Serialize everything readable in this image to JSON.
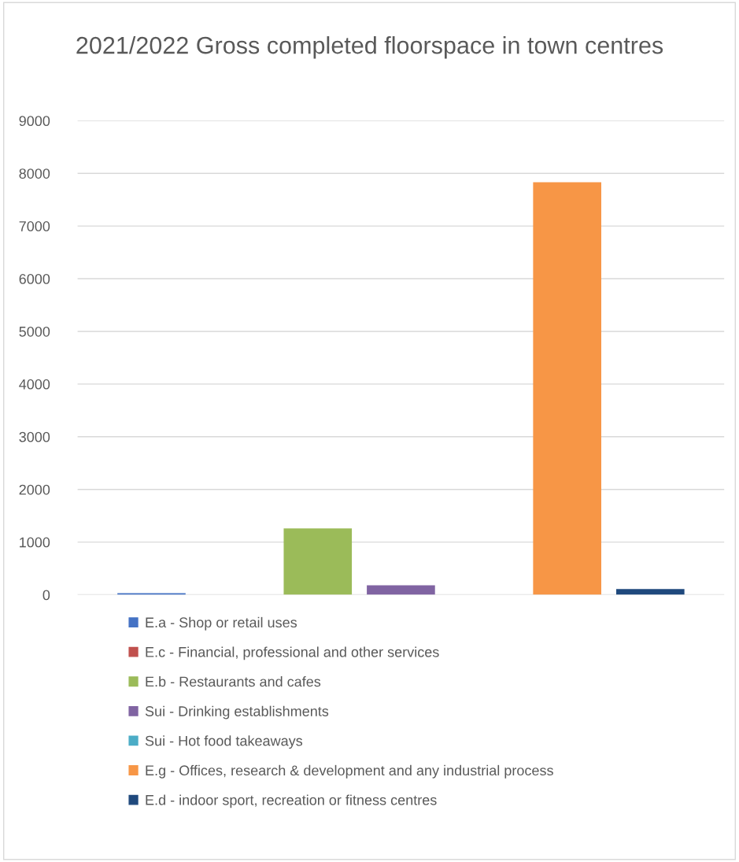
{
  "chart_data": {
    "type": "bar",
    "title": "2021/2022 Gross completed floorspace in town centres",
    "categories": [
      null
    ],
    "series": [
      {
        "name": "E.a - Shop or retail uses",
        "color": "#4472c4",
        "values": [
          30
        ]
      },
      {
        "name": "E.c - Financial, professional and other services",
        "color": "#c0504d",
        "values": [
          0
        ]
      },
      {
        "name": "E.b - Restaurants and cafes",
        "color": "#9bbb59",
        "values": [
          1260
        ]
      },
      {
        "name": "Sui - Drinking establishments",
        "color": "#8064a2",
        "values": [
          180
        ]
      },
      {
        "name": "Sui - Hot food takeaways",
        "color": "#4bacc6",
        "values": [
          0
        ]
      },
      {
        "name": "E.g - Offices, research & development and any industrial process",
        "color": "#f79646",
        "values": [
          7830
        ]
      },
      {
        "name": "E.d - indoor sport, recreation or fitness centres",
        "color": "#1f497d",
        "values": [
          110
        ]
      }
    ],
    "ylim": [
      0,
      9000
    ],
    "yticks": [
      0,
      1000,
      2000,
      3000,
      4000,
      5000,
      6000,
      7000,
      8000,
      9000
    ],
    "grid": "y",
    "legend": "bottom"
  }
}
